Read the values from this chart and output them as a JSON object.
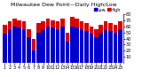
{
  "title": "Milwaukee Dew Point—Daily High/Low",
  "high_values": [
    62,
    68,
    72,
    70,
    68,
    55,
    40,
    65,
    68,
    72,
    70,
    68,
    72,
    50,
    75,
    72,
    68,
    65,
    60,
    55,
    62,
    68,
    65,
    62,
    68
  ],
  "low_values": [
    48,
    55,
    60,
    58,
    55,
    42,
    20,
    50,
    55,
    60,
    58,
    55,
    60,
    35,
    60,
    58,
    55,
    52,
    48,
    42,
    50,
    55,
    52,
    50,
    55
  ],
  "days": [
    "1",
    "2",
    "3",
    "4",
    "5",
    "6",
    "7",
    "8",
    "9",
    "10",
    "11",
    "12",
    "13",
    "14",
    "15",
    "16",
    "17",
    "18",
    "19",
    "20",
    "21",
    "22",
    "23",
    "24",
    "25"
  ],
  "bar_width": 0.42,
  "high_color": "#dd0000",
  "low_color": "#0000cc",
  "ylim": [
    0,
    80
  ],
  "yticks": [
    10,
    20,
    30,
    40,
    50,
    60,
    70,
    80
  ],
  "background_color": "#ffffff",
  "title_fontsize": 4.5,
  "tick_fontsize": 3.5,
  "legend_fontsize": 3.5
}
